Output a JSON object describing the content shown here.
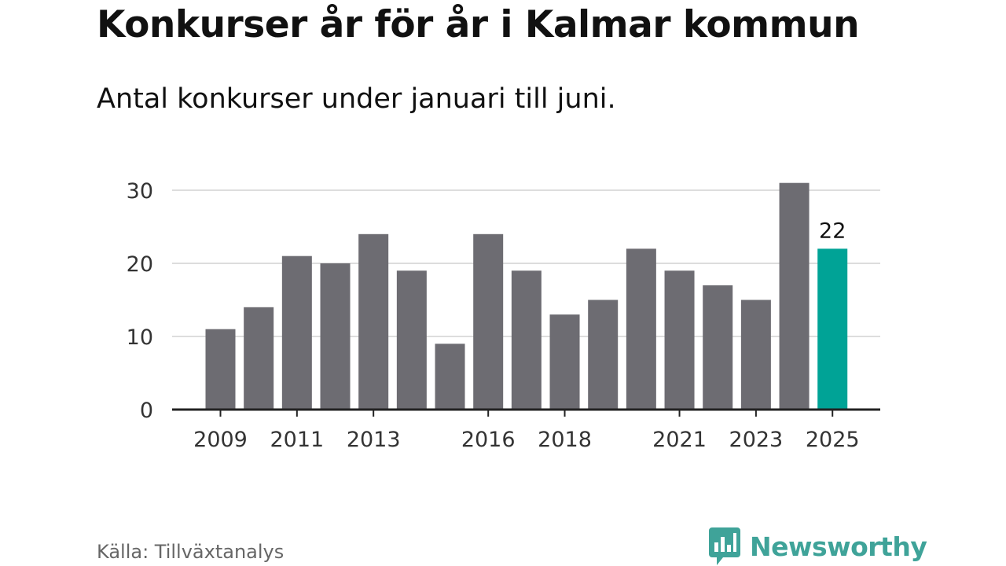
{
  "title": "Konkurser år för år i Kalmar kommun",
  "subtitle": "Antal konkurser under januari till juni.",
  "source": "Källa: Tillväxtanalys",
  "brand": "Newsworthy",
  "colors": {
    "bar": "#6d6c72",
    "highlight": "#00a396",
    "grid": "#dddddd",
    "axis": "#222222",
    "brand": "#3fa399"
  },
  "chart_data": {
    "type": "bar",
    "categories": [
      "2009",
      "2010",
      "2011",
      "2012",
      "2013",
      "2014",
      "2015",
      "2016",
      "2017",
      "2018",
      "2019",
      "2020",
      "2021",
      "2022",
      "2023",
      "2024",
      "2025"
    ],
    "values": [
      11,
      14,
      21,
      20,
      24,
      19,
      9,
      24,
      19,
      13,
      15,
      22,
      19,
      17,
      15,
      31,
      22
    ],
    "highlight_category": "2025",
    "highlight_label": "22",
    "x_tick_labels": [
      "2009",
      "2011",
      "2013",
      "2016",
      "2018",
      "2021",
      "2023",
      "2025"
    ],
    "y_ticks": [
      0,
      10,
      20,
      30
    ],
    "ylim": [
      0,
      30
    ],
    "grid": true,
    "xlabel": "",
    "ylabel": ""
  }
}
